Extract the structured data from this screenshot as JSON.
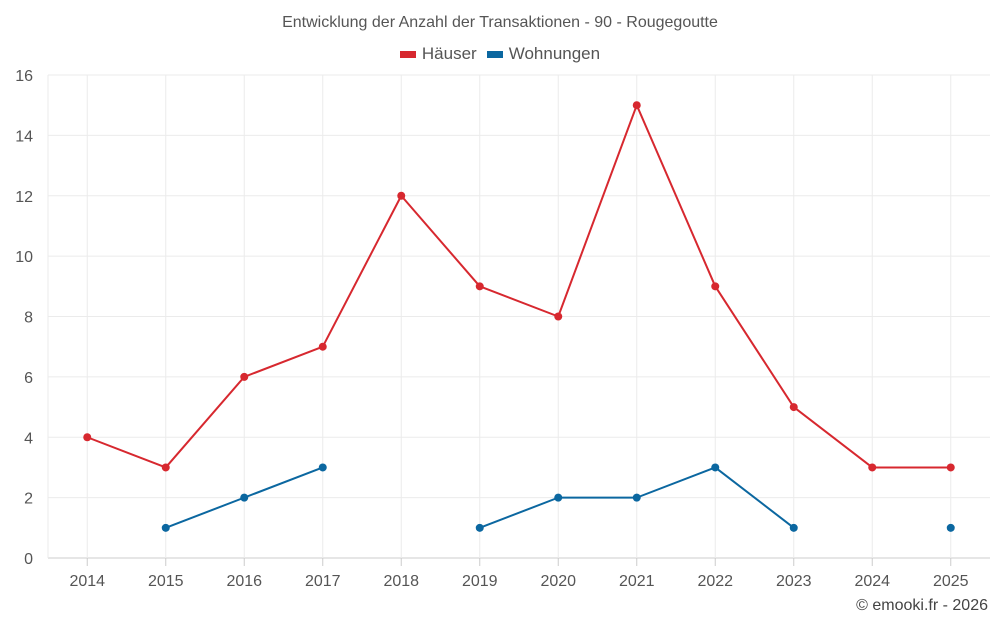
{
  "chart_data": {
    "type": "line",
    "title": "Entwicklung der Anzahl der Transaktionen - 90 - Rougegoutte",
    "xlabel": "",
    "ylabel": "",
    "categories": [
      "2014",
      "2015",
      "2016",
      "2017",
      "2018",
      "2019",
      "2020",
      "2021",
      "2022",
      "2023",
      "2024",
      "2025"
    ],
    "ylim": [
      0,
      16
    ],
    "yticks": [
      0,
      2,
      4,
      6,
      8,
      10,
      12,
      14,
      16
    ],
    "grid": true,
    "legend_position": "top-center",
    "series": [
      {
        "name": "Häuser",
        "color": "#d7282f",
        "values": [
          4,
          3,
          6,
          7,
          12,
          9,
          8,
          15,
          9,
          5,
          3,
          3
        ]
      },
      {
        "name": "Wohnungen",
        "color": "#0b67a0",
        "values": [
          null,
          1,
          2,
          3,
          null,
          1,
          2,
          2,
          3,
          1,
          null,
          1
        ]
      }
    ]
  },
  "footer": {
    "credit": "© emooki.fr - 2026"
  }
}
